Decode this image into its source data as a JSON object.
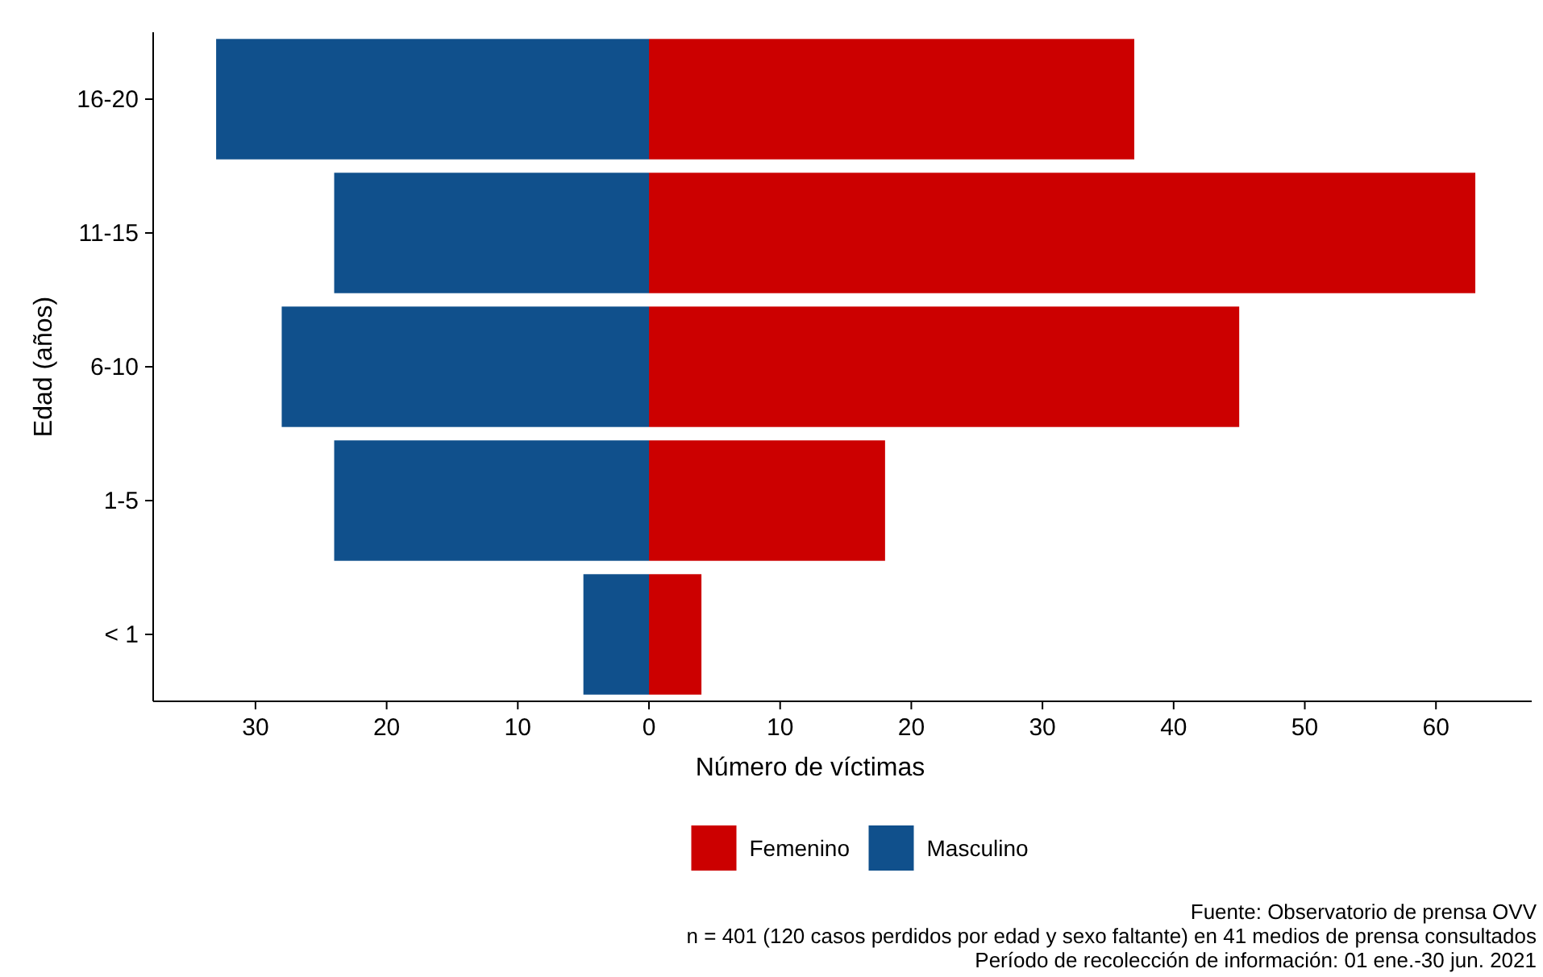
{
  "chart_data": {
    "type": "bar",
    "orientation": "horizontal",
    "stacked": true,
    "xlabel": "Número de víctimas",
    "ylabel": "Edad (años)",
    "categories": [
      "16-20",
      "11-15",
      "6-10",
      "1-5",
      "< 1"
    ],
    "series": [
      {
        "name": "Femenino",
        "color": "#cc0000",
        "values": [
          37,
          63,
          45,
          18,
          4
        ]
      },
      {
        "name": "Masculino",
        "color": "#10508c",
        "values": [
          -33,
          -24,
          -28,
          -24,
          -5
        ]
      }
    ],
    "xlim": [
      -37.8,
      67.3
    ],
    "xticks": [
      {
        "value": -30,
        "label": "30"
      },
      {
        "value": -20,
        "label": "20"
      },
      {
        "value": -10,
        "label": "10"
      },
      0,
      10,
      20,
      30,
      40,
      50,
      60
    ],
    "grid": false,
    "legend": "bottom",
    "annotations": [
      "Fuente: Observatorio de prensa OVV",
      "n = 401 (120 casos perdidos por edad y sexo faltante) en 41 medios de prensa consultados",
      "Período de recolección de información: 01 ene.-30 jun. 2021"
    ]
  }
}
